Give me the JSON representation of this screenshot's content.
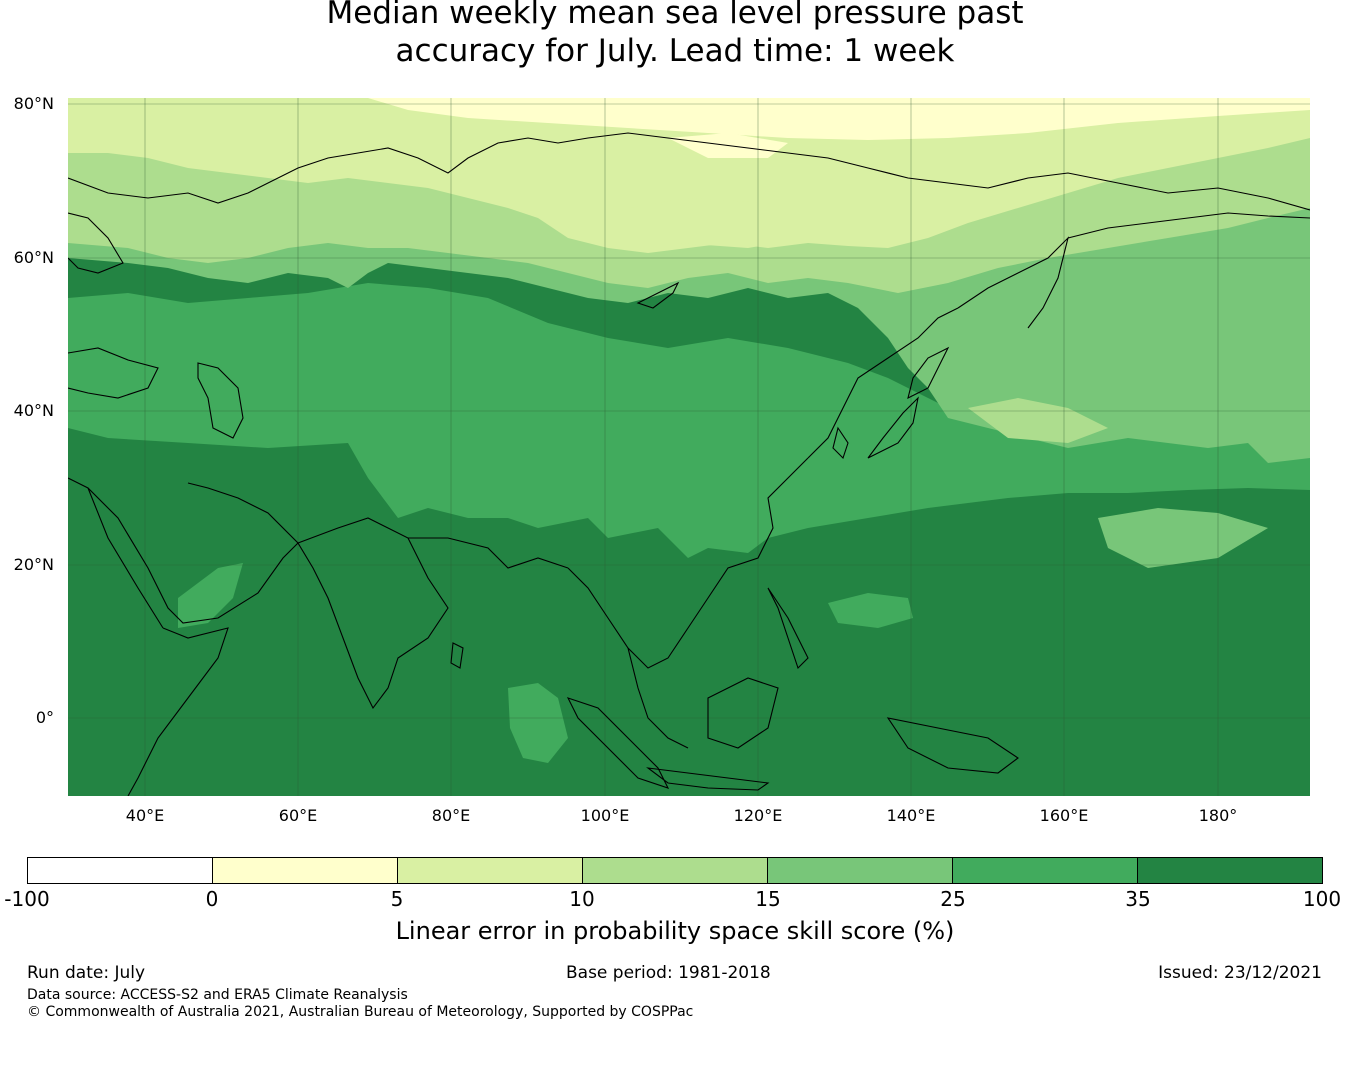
{
  "title": {
    "line1": "Median weekly mean sea level pressure past",
    "line2": "accuracy for July. Lead time: 1 week"
  },
  "map": {
    "extent": {
      "lon_min": 30,
      "lon_max": 192,
      "lat_min": -10,
      "lat_max": 80
    },
    "lat_labels": [
      "80°N",
      "60°N",
      "40°N",
      "20°N",
      "0°"
    ],
    "lon_labels": [
      "40°E",
      "60°E",
      "80°E",
      "100°E",
      "120°E",
      "140°E",
      "160°E",
      "180°"
    ],
    "colors": {
      "very_low": "#ffffff",
      "c0_5": "#ffffcc",
      "c5_10": "#d9f0a3",
      "c10_15": "#addd8e",
      "c15_25": "#78c679",
      "c25_35": "#41ab5d",
      "c35_100": "#238443"
    }
  },
  "colorbar": {
    "ticks": [
      "-100",
      "0",
      "5",
      "10",
      "15",
      "25",
      "35",
      "100"
    ],
    "colors": [
      "#ffffff",
      "#ffffcc",
      "#d9f0a3",
      "#addd8e",
      "#78c679",
      "#41ab5d",
      "#238443"
    ],
    "label": "Linear error in probability space skill score (%)"
  },
  "footer": {
    "run_date": "Run date: July",
    "base_period": "Base period: 1981-2018",
    "issued": "Issued: 23/12/2021",
    "data_source": "Data source: ACCESS-S2 and ERA5 Climate Reanalysis",
    "copyright": "© Commonwealth of Australia 2021, Australian Bureau of Meteorology, Supported by COSPPac"
  }
}
